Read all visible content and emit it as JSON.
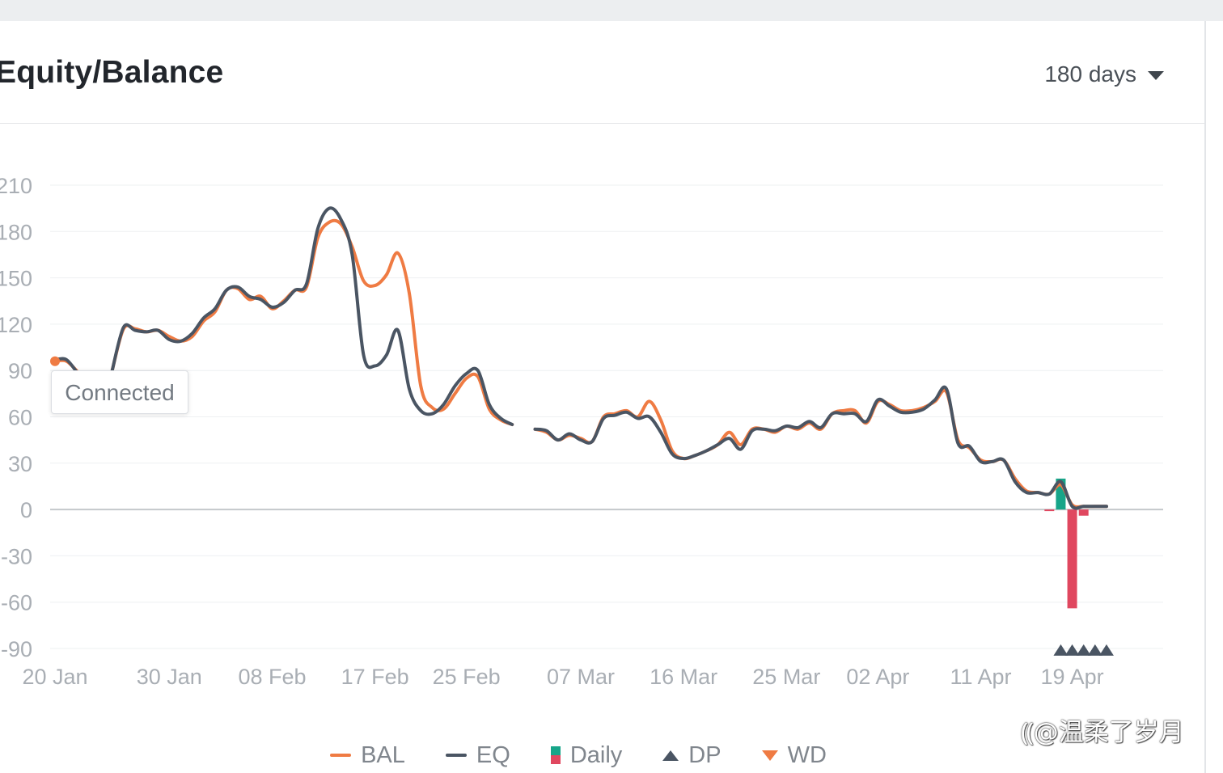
{
  "header": {
    "title": "Equity/Balance",
    "range_selected": "180 days"
  },
  "tooltip": {
    "text": "Connected"
  },
  "watermark": {
    "text": "⸨@温柔了岁月"
  },
  "colors": {
    "bal": "#ef7b43",
    "eq": "#4a5563",
    "daily_positive": "#17a589",
    "daily_negative": "#e0475f",
    "grid": "#eef0f2",
    "zero_line": "#c4c8cc",
    "tick_text": "#a9aeb4"
  },
  "chart_data": {
    "type": "line",
    "xlabel": "",
    "ylabel": "",
    "ylim": [
      -90,
      210
    ],
    "y_ticks": [
      210,
      180,
      150,
      120,
      90,
      60,
      30,
      0,
      -30,
      -60,
      -90
    ],
    "x_ticks": [
      "20 Jan",
      "30 Jan",
      "08 Feb",
      "17 Feb",
      "25 Feb",
      "07 Mar",
      "16 Mar",
      "25 Mar",
      "02 Apr",
      "11 Apr",
      "19 Apr"
    ],
    "grid": true,
    "legend_position": "bottom",
    "series": [
      {
        "name": "BAL",
        "kind": "line",
        "points": [
          [
            "20 Jan",
            96
          ],
          [
            "21 Jan",
            96
          ],
          [
            "22 Jan",
            89
          ],
          [
            "25 Jan",
            90
          ],
          [
            "26 Jan",
            117
          ],
          [
            "27 Jan",
            117
          ],
          [
            "28 Jan",
            115
          ],
          [
            "29 Jan",
            116
          ],
          [
            "30 Jan",
            112
          ],
          [
            "31 Jan",
            109
          ],
          [
            "01 Feb",
            112
          ],
          [
            "02 Feb",
            122
          ],
          [
            "03 Feb",
            128
          ],
          [
            "04 Feb",
            142
          ],
          [
            "05 Feb",
            143
          ],
          [
            "06 Feb",
            136
          ],
          [
            "07 Feb",
            138
          ],
          [
            "08 Feb",
            130
          ],
          [
            "09 Feb",
            135
          ],
          [
            "10 Feb",
            142
          ],
          [
            "11 Feb",
            144
          ],
          [
            "12 Feb",
            176
          ],
          [
            "13 Feb",
            186
          ],
          [
            "14 Feb",
            185
          ],
          [
            "15 Feb",
            170
          ],
          [
            "16 Feb",
            148
          ],
          [
            "17 Feb",
            145
          ],
          [
            "18 Feb",
            152
          ],
          [
            "19 Feb",
            166
          ],
          [
            "20 Feb",
            140
          ],
          [
            "21 Feb",
            80
          ],
          [
            "22 Feb",
            66
          ],
          [
            "23 Feb",
            65
          ],
          [
            "24 Feb",
            75
          ],
          [
            "25 Feb",
            85
          ],
          [
            "26 Feb",
            86
          ],
          [
            "27 Feb",
            65
          ],
          [
            "28 Feb",
            58
          ],
          [
            "01 Mar",
            55
          ],
          [
            "03 Mar",
            52
          ],
          [
            "04 Mar",
            50
          ],
          [
            "05 Mar",
            45
          ],
          [
            "06 Mar",
            48
          ],
          [
            "07 Mar",
            46
          ],
          [
            "08 Mar",
            44
          ],
          [
            "09 Mar",
            60
          ],
          [
            "10 Mar",
            62
          ],
          [
            "11 Mar",
            64
          ],
          [
            "12 Mar",
            60
          ],
          [
            "13 Mar",
            70
          ],
          [
            "14 Mar",
            58
          ],
          [
            "15 Mar",
            38
          ],
          [
            "16 Mar",
            33
          ],
          [
            "17 Mar",
            35
          ],
          [
            "18 Mar",
            38
          ],
          [
            "19 Mar",
            42
          ],
          [
            "20 Mar",
            50
          ],
          [
            "21 Mar",
            42
          ],
          [
            "22 Mar",
            52
          ],
          [
            "23 Mar",
            52
          ],
          [
            "24 Mar",
            50
          ],
          [
            "25 Mar",
            54
          ],
          [
            "26 Mar",
            52
          ],
          [
            "27 Mar",
            56
          ],
          [
            "28 Mar",
            52
          ],
          [
            "29 Mar",
            62
          ],
          [
            "30 Mar",
            64
          ],
          [
            "31 Mar",
            64
          ],
          [
            "01 Apr",
            56
          ],
          [
            "02 Apr",
            70
          ],
          [
            "03 Apr",
            68
          ],
          [
            "04 Apr",
            64
          ],
          [
            "05 Apr",
            64
          ],
          [
            "06 Apr",
            66
          ],
          [
            "07 Apr",
            70
          ],
          [
            "08 Apr",
            76
          ],
          [
            "09 Apr",
            45
          ],
          [
            "10 Apr",
            40
          ],
          [
            "11 Apr",
            32
          ],
          [
            "12 Apr",
            31
          ],
          [
            "13 Apr",
            32
          ],
          [
            "14 Apr",
            20
          ],
          [
            "15 Apr",
            12
          ],
          [
            "16 Apr",
            11
          ],
          [
            "17 Apr",
            10
          ],
          [
            "18 Apr",
            16
          ],
          [
            "19 Apr",
            3
          ],
          [
            "20 Apr",
            2
          ],
          [
            "21 Apr",
            2
          ],
          [
            "22 Apr",
            2
          ]
        ]
      },
      {
        "name": "EQ",
        "kind": "line",
        "points": [
          [
            "20 Jan",
            97
          ],
          [
            "21 Jan",
            97
          ],
          [
            "22 Jan",
            88
          ],
          [
            "25 Jan",
            90
          ],
          [
            "26 Jan",
            118
          ],
          [
            "27 Jan",
            116
          ],
          [
            "28 Jan",
            115
          ],
          [
            "29 Jan",
            116
          ],
          [
            "30 Jan",
            110
          ],
          [
            "31 Jan",
            109
          ],
          [
            "01 Feb",
            114
          ],
          [
            "02 Feb",
            124
          ],
          [
            "03 Feb",
            130
          ],
          [
            "04 Feb",
            142
          ],
          [
            "05 Feb",
            144
          ],
          [
            "06 Feb",
            138
          ],
          [
            "07 Feb",
            136
          ],
          [
            "08 Feb",
            131
          ],
          [
            "09 Feb",
            134
          ],
          [
            "10 Feb",
            142
          ],
          [
            "11 Feb",
            146
          ],
          [
            "12 Feb",
            182
          ],
          [
            "13 Feb",
            195
          ],
          [
            "14 Feb",
            188
          ],
          [
            "15 Feb",
            165
          ],
          [
            "16 Feb",
            100
          ],
          [
            "17 Feb",
            93
          ],
          [
            "18 Feb",
            100
          ],
          [
            "19 Feb",
            116
          ],
          [
            "20 Feb",
            78
          ],
          [
            "21 Feb",
            64
          ],
          [
            "22 Feb",
            62
          ],
          [
            "23 Feb",
            68
          ],
          [
            "24 Feb",
            80
          ],
          [
            "25 Feb",
            88
          ],
          [
            "26 Feb",
            90
          ],
          [
            "27 Feb",
            68
          ],
          [
            "28 Feb",
            59
          ],
          [
            "01 Mar",
            55
          ],
          [
            "03 Mar",
            52
          ],
          [
            "04 Mar",
            51
          ],
          [
            "05 Mar",
            45
          ],
          [
            "06 Mar",
            49
          ],
          [
            "07 Mar",
            45
          ],
          [
            "08 Mar",
            44
          ],
          [
            "09 Mar",
            59
          ],
          [
            "10 Mar",
            61
          ],
          [
            "11 Mar",
            63
          ],
          [
            "12 Mar",
            59
          ],
          [
            "13 Mar",
            60
          ],
          [
            "14 Mar",
            50
          ],
          [
            "15 Mar",
            36
          ],
          [
            "16 Mar",
            33
          ],
          [
            "17 Mar",
            35
          ],
          [
            "18 Mar",
            38
          ],
          [
            "19 Mar",
            42
          ],
          [
            "20 Mar",
            46
          ],
          [
            "21 Mar",
            39
          ],
          [
            "22 Mar",
            51
          ],
          [
            "23 Mar",
            52
          ],
          [
            "24 Mar",
            51
          ],
          [
            "25 Mar",
            54
          ],
          [
            "26 Mar",
            53
          ],
          [
            "27 Mar",
            57
          ],
          [
            "28 Mar",
            53
          ],
          [
            "29 Mar",
            62
          ],
          [
            "30 Mar",
            62
          ],
          [
            "31 Mar",
            62
          ],
          [
            "01 Apr",
            57
          ],
          [
            "02 Apr",
            71
          ],
          [
            "03 Apr",
            67
          ],
          [
            "04 Apr",
            63
          ],
          [
            "05 Apr",
            63
          ],
          [
            "06 Apr",
            65
          ],
          [
            "07 Apr",
            71
          ],
          [
            "08 Apr",
            78
          ],
          [
            "09 Apr",
            43
          ],
          [
            "10 Apr",
            41
          ],
          [
            "11 Apr",
            31
          ],
          [
            "12 Apr",
            31
          ],
          [
            "13 Apr",
            32
          ],
          [
            "14 Apr",
            18
          ],
          [
            "15 Apr",
            11
          ],
          [
            "16 Apr",
            11
          ],
          [
            "17 Apr",
            10
          ],
          [
            "18 Apr",
            18
          ],
          [
            "19 Apr",
            2
          ],
          [
            "20 Apr",
            2
          ],
          [
            "21 Apr",
            2
          ],
          [
            "22 Apr",
            2
          ]
        ]
      },
      {
        "name": "Daily",
        "kind": "bar",
        "points": [
          [
            "17 Apr",
            -1
          ],
          [
            "18 Apr",
            20
          ],
          [
            "19 Apr",
            -64
          ],
          [
            "20 Apr",
            -4
          ]
        ]
      },
      {
        "name": "DP",
        "kind": "triangle-up",
        "points": [
          [
            "18 Apr",
            -92
          ],
          [
            "19 Apr",
            -92
          ],
          [
            "20 Apr",
            -92
          ],
          [
            "21 Apr",
            -92
          ],
          [
            "22 Apr",
            -92
          ]
        ]
      },
      {
        "name": "WD",
        "kind": "triangle-down",
        "points": []
      }
    ]
  }
}
